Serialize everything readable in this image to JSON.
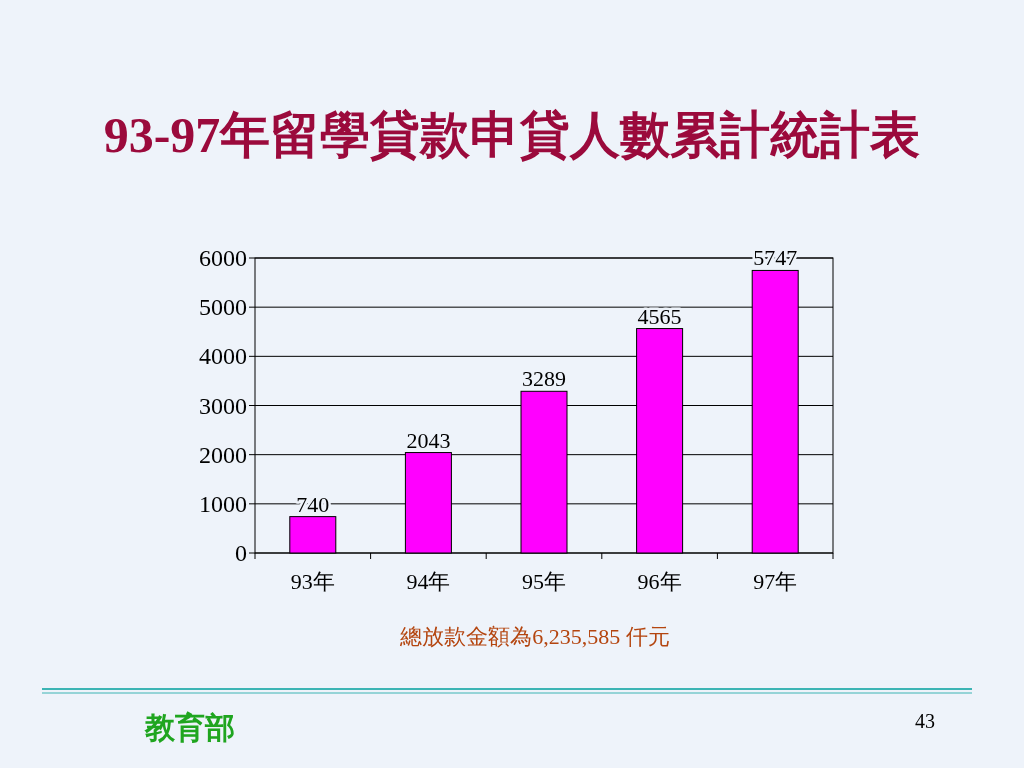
{
  "chart_data": {
    "type": "bar",
    "title": "93-97年留學貸款申貸人數累計統計表",
    "categories": [
      "93年",
      "94年",
      "95年",
      "96年",
      "97年"
    ],
    "values": [
      740,
      2043,
      3289,
      4565,
      5747
    ],
    "color": "#ff00ff",
    "ylim": [
      0,
      6000
    ],
    "yticks": [
      0,
      1000,
      2000,
      3000,
      4000,
      5000,
      6000
    ],
    "grid": "y",
    "data_labels": true,
    "annotations": [
      "總放款金額為6,235,585 仟元",
      "教育部",
      "43"
    ]
  }
}
